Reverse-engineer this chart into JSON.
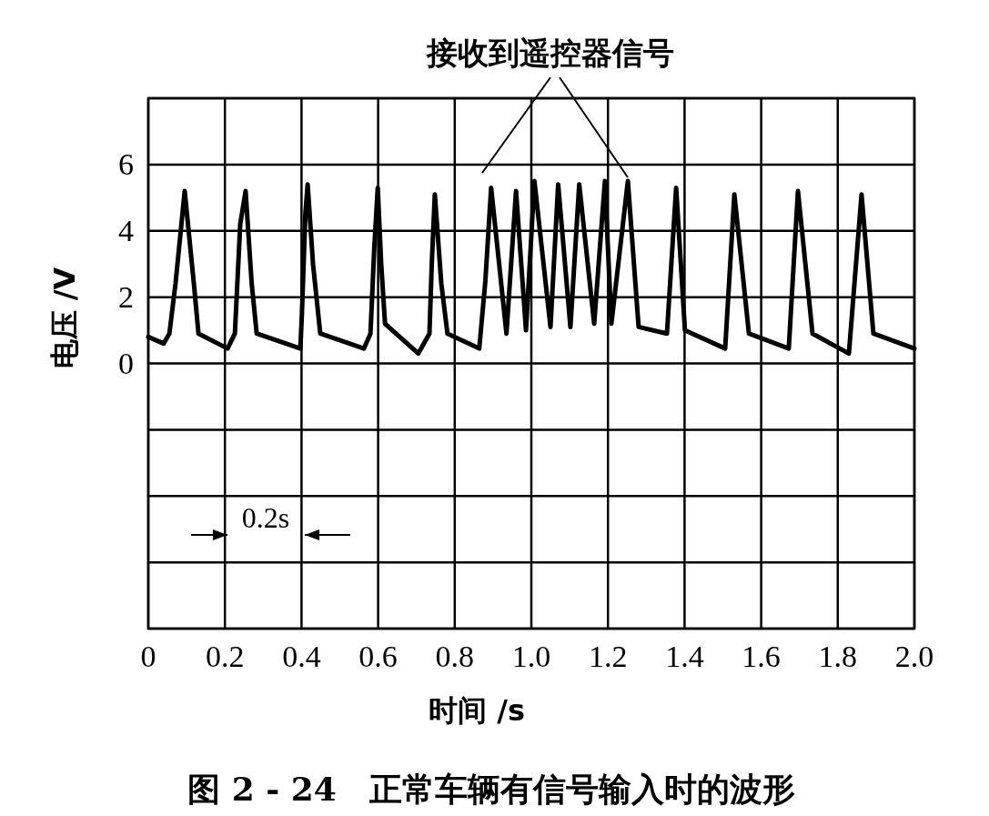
{
  "chart_data": {
    "type": "line",
    "title": "图 2 - 24　正常车辆有信号输入时的波形",
    "xlabel": "时间 /s",
    "ylabel": "电压 /V",
    "annotations": [
      "接收到遥控器信号",
      "0.2s"
    ],
    "x": [
      0,
      0.04,
      0.055,
      0.071,
      0.095,
      0.119,
      0.131,
      0.207,
      0.226,
      0.24,
      0.254,
      0.27,
      0.283,
      0.397,
      0.401,
      0.41,
      0.416,
      0.43,
      0.449,
      0.563,
      0.58,
      0.59,
      0.599,
      0.608,
      0.618,
      0.705,
      0.734,
      0.74,
      0.748,
      0.765,
      0.781,
      0.864,
      0.88,
      0.895,
      0.935,
      0.96,
      0.986,
      1.008,
      1.05,
      1.07,
      1.102,
      1.125,
      1.164,
      1.192,
      1.209,
      1.252,
      1.28,
      1.354,
      1.378,
      1.401,
      1.506,
      1.53,
      1.568,
      1.672,
      1.696,
      1.734,
      1.829,
      1.862,
      1.893,
      2.0
    ],
    "series": [
      {
        "color": "#000000",
        "values": [
          0.8,
          0.6,
          0.9,
          2.4,
          5.2,
          2.4,
          0.9,
          0.45,
          0.9,
          4.2,
          5.2,
          2.4,
          0.9,
          0.45,
          1.5,
          4.5,
          5.4,
          3.0,
          0.9,
          0.45,
          0.9,
          3.5,
          5.3,
          3.0,
          1.2,
          0.3,
          0.9,
          3.0,
          5.1,
          2.4,
          0.9,
          0.45,
          2.5,
          5.3,
          0.9,
          5.2,
          1.0,
          5.5,
          1.1,
          5.4,
          1.1,
          5.4,
          1.2,
          5.5,
          1.2,
          5.5,
          1.1,
          0.9,
          5.3,
          1.0,
          0.45,
          5.1,
          0.9,
          0.45,
          5.2,
          0.9,
          0.3,
          5.1,
          0.9,
          0.45
        ]
      }
    ],
    "xlim": [
      0,
      2.0
    ],
    "ylim": [
      -8,
      8
    ],
    "xticks": [
      0,
      0.2,
      0.4,
      0.6,
      0.8,
      {
        "value": 1,
        "label": "1.0"
      },
      1.2,
      1.4,
      1.6,
      1.8,
      {
        "value": 2,
        "label": "2.0"
      }
    ],
    "yticks": [
      {
        "value": -8,
        "label": null
      },
      {
        "value": -6,
        "label": null
      },
      {
        "value": -4,
        "label": null
      },
      {
        "value": -2,
        "label": null
      },
      0,
      2,
      4,
      6,
      {
        "value": 8,
        "label": null
      }
    ],
    "grid": true,
    "marker": "none",
    "line_style": "solid"
  }
}
